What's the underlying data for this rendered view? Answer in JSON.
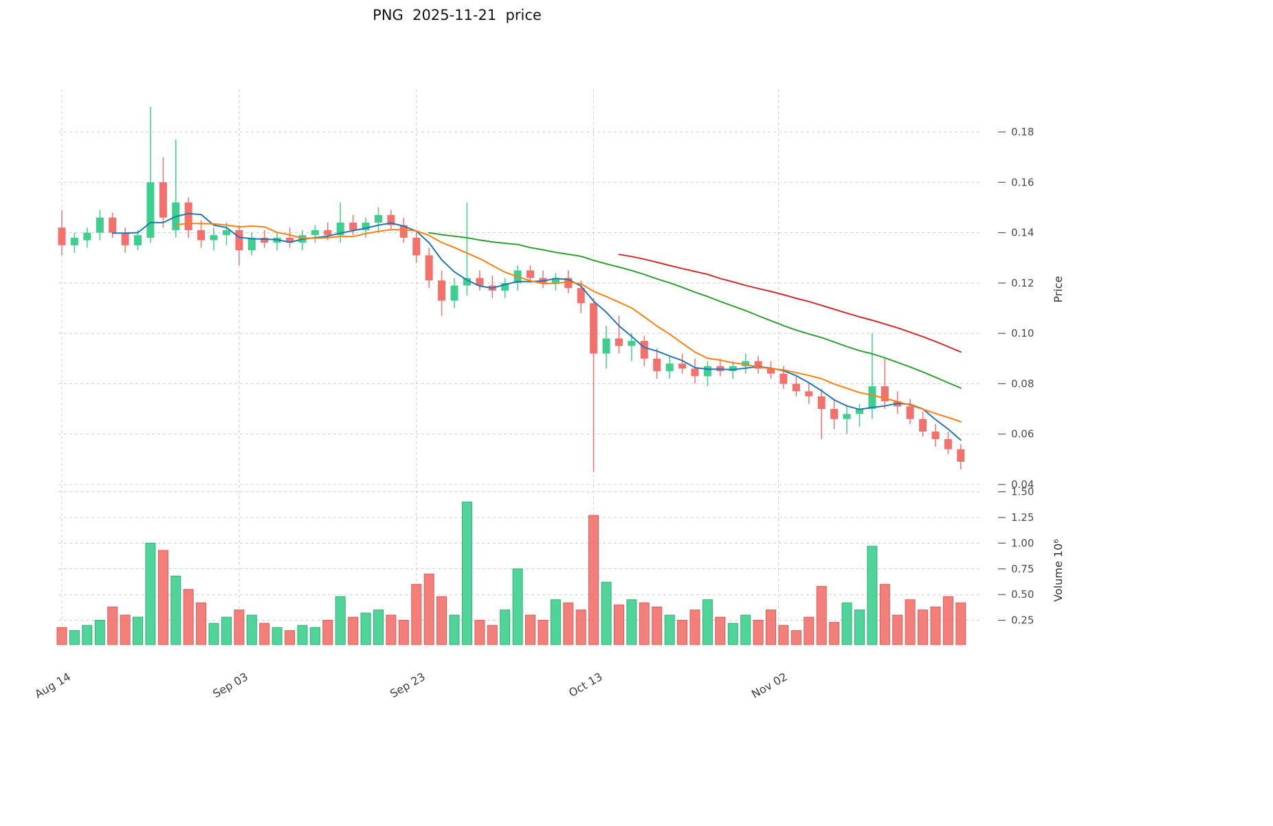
{
  "title": "PNG  2025-11-21  price",
  "chart_data": {
    "type": "candlestick",
    "symbol": "PNG",
    "as_of_date": "2025-11-21",
    "volume_unit": "millions",
    "price_axis": {
      "label": "Price",
      "ticks": [
        0.04,
        0.06,
        0.08,
        0.1,
        0.12,
        0.14,
        0.16,
        0.18
      ],
      "min": 0.038,
      "max": 0.197
    },
    "volume_axis": {
      "label": "Volume  10⁶",
      "ticks": [
        0.25,
        0.5,
        0.75,
        1.0,
        1.25,
        1.5
      ],
      "min": 0,
      "max": 1.55
    },
    "x_ticks": [
      {
        "index": 0,
        "label": "Aug 14"
      },
      {
        "index": 14,
        "label": "Sep 03"
      },
      {
        "index": 28,
        "label": "Sep 23"
      },
      {
        "index": 42,
        "label": "Oct 13"
      },
      {
        "index": 56.6,
        "label": "Nov 02"
      }
    ],
    "dates": [
      "2025-08-14",
      "2025-08-15",
      "2025-08-18",
      "2025-08-19",
      "2025-08-20",
      "2025-08-21",
      "2025-08-22",
      "2025-08-25",
      "2025-08-26",
      "2025-08-27",
      "2025-08-28",
      "2025-08-29",
      "2025-09-01",
      "2025-09-02",
      "2025-09-03",
      "2025-09-04",
      "2025-09-05",
      "2025-09-08",
      "2025-09-09",
      "2025-09-10",
      "2025-09-11",
      "2025-09-12",
      "2025-09-15",
      "2025-09-16",
      "2025-09-17",
      "2025-09-18",
      "2025-09-19",
      "2025-09-22",
      "2025-09-23",
      "2025-09-24",
      "2025-09-25",
      "2025-09-26",
      "2025-09-29",
      "2025-09-30",
      "2025-10-01",
      "2025-10-02",
      "2025-10-03",
      "2025-10-06",
      "2025-10-07",
      "2025-10-08",
      "2025-10-09",
      "2025-10-10",
      "2025-10-13",
      "2025-10-14",
      "2025-10-15",
      "2025-10-16",
      "2025-10-17",
      "2025-10-20",
      "2025-10-21",
      "2025-10-22",
      "2025-10-23",
      "2025-10-24",
      "2025-10-27",
      "2025-10-28",
      "2025-10-29",
      "2025-10-30",
      "2025-10-31",
      "2025-11-03",
      "2025-11-04",
      "2025-11-05",
      "2025-11-06",
      "2025-11-07",
      "2025-11-10",
      "2025-11-11",
      "2025-11-12",
      "2025-11-13",
      "2025-11-14",
      "2025-11-17",
      "2025-11-18",
      "2025-11-19",
      "2025-11-20",
      "2025-11-21"
    ],
    "ohlc": [
      [
        0.142,
        0.149,
        0.131,
        0.135
      ],
      [
        0.135,
        0.14,
        0.132,
        0.138
      ],
      [
        0.137,
        0.142,
        0.134,
        0.14
      ],
      [
        0.14,
        0.149,
        0.137,
        0.146
      ],
      [
        0.146,
        0.148,
        0.138,
        0.14
      ],
      [
        0.14,
        0.142,
        0.132,
        0.135
      ],
      [
        0.135,
        0.141,
        0.133,
        0.139
      ],
      [
        0.138,
        0.19,
        0.136,
        0.16
      ],
      [
        0.16,
        0.17,
        0.142,
        0.146
      ],
      [
        0.141,
        0.177,
        0.138,
        0.152
      ],
      [
        0.152,
        0.154,
        0.138,
        0.141
      ],
      [
        0.141,
        0.145,
        0.134,
        0.137
      ],
      [
        0.137,
        0.142,
        0.133,
        0.139
      ],
      [
        0.139,
        0.144,
        0.135,
        0.141
      ],
      [
        0.141,
        0.143,
        0.127,
        0.133
      ],
      [
        0.133,
        0.14,
        0.131,
        0.138
      ],
      [
        0.138,
        0.141,
        0.134,
        0.136
      ],
      [
        0.136,
        0.14,
        0.133,
        0.138
      ],
      [
        0.138,
        0.142,
        0.134,
        0.136
      ],
      [
        0.136,
        0.141,
        0.133,
        0.139
      ],
      [
        0.139,
        0.143,
        0.136,
        0.141
      ],
      [
        0.141,
        0.144,
        0.137,
        0.139
      ],
      [
        0.139,
        0.152,
        0.136,
        0.144
      ],
      [
        0.144,
        0.147,
        0.139,
        0.141
      ],
      [
        0.141,
        0.146,
        0.138,
        0.144
      ],
      [
        0.144,
        0.15,
        0.14,
        0.147
      ],
      [
        0.147,
        0.149,
        0.141,
        0.143
      ],
      [
        0.143,
        0.146,
        0.136,
        0.138
      ],
      [
        0.138,
        0.14,
        0.128,
        0.131
      ],
      [
        0.131,
        0.134,
        0.118,
        0.121
      ],
      [
        0.121,
        0.125,
        0.107,
        0.113
      ],
      [
        0.113,
        0.122,
        0.11,
        0.119
      ],
      [
        0.119,
        0.152,
        0.115,
        0.122
      ],
      [
        0.122,
        0.125,
        0.117,
        0.119
      ],
      [
        0.119,
        0.123,
        0.114,
        0.117
      ],
      [
        0.117,
        0.122,
        0.114,
        0.12
      ],
      [
        0.12,
        0.127,
        0.117,
        0.125
      ],
      [
        0.125,
        0.127,
        0.12,
        0.122
      ],
      [
        0.122,
        0.125,
        0.118,
        0.12
      ],
      [
        0.12,
        0.124,
        0.117,
        0.122
      ],
      [
        0.122,
        0.125,
        0.116,
        0.118
      ],
      [
        0.118,
        0.121,
        0.108,
        0.112
      ],
      [
        0.112,
        0.114,
        0.045,
        0.092
      ],
      [
        0.092,
        0.103,
        0.086,
        0.098
      ],
      [
        0.098,
        0.107,
        0.092,
        0.095
      ],
      [
        0.095,
        0.1,
        0.089,
        0.097
      ],
      [
        0.097,
        0.099,
        0.087,
        0.09
      ],
      [
        0.09,
        0.094,
        0.082,
        0.085
      ],
      [
        0.085,
        0.091,
        0.082,
        0.088
      ],
      [
        0.088,
        0.092,
        0.084,
        0.086
      ],
      [
        0.086,
        0.09,
        0.08,
        0.083
      ],
      [
        0.083,
        0.089,
        0.079,
        0.087
      ],
      [
        0.087,
        0.09,
        0.083,
        0.085
      ],
      [
        0.085,
        0.089,
        0.082,
        0.087
      ],
      [
        0.087,
        0.092,
        0.084,
        0.089
      ],
      [
        0.089,
        0.091,
        0.084,
        0.086
      ],
      [
        0.086,
        0.089,
        0.082,
        0.084
      ],
      [
        0.084,
        0.087,
        0.078,
        0.08
      ],
      [
        0.08,
        0.083,
        0.075,
        0.077
      ],
      [
        0.077,
        0.08,
        0.072,
        0.075
      ],
      [
        0.075,
        0.078,
        0.058,
        0.07
      ],
      [
        0.07,
        0.074,
        0.062,
        0.066
      ],
      [
        0.066,
        0.071,
        0.06,
        0.068
      ],
      [
        0.068,
        0.072,
        0.063,
        0.07
      ],
      [
        0.07,
        0.1,
        0.066,
        0.079
      ],
      [
        0.079,
        0.09,
        0.07,
        0.073
      ],
      [
        0.073,
        0.077,
        0.068,
        0.071
      ],
      [
        0.071,
        0.074,
        0.064,
        0.066
      ],
      [
        0.066,
        0.069,
        0.059,
        0.061
      ],
      [
        0.061,
        0.064,
        0.055,
        0.058
      ],
      [
        0.058,
        0.061,
        0.052,
        0.054
      ],
      [
        0.054,
        0.056,
        0.046,
        0.049
      ]
    ],
    "volume": [
      0.18,
      0.15,
      0.2,
      0.25,
      0.38,
      0.3,
      0.28,
      1.0,
      0.93,
      0.68,
      0.55,
      0.42,
      0.22,
      0.28,
      0.35,
      0.3,
      0.22,
      0.18,
      0.15,
      0.2,
      0.18,
      0.25,
      0.48,
      0.28,
      0.32,
      0.35,
      0.3,
      0.25,
      0.6,
      0.7,
      0.48,
      0.3,
      1.4,
      0.25,
      0.2,
      0.35,
      0.75,
      0.3,
      0.25,
      0.45,
      0.42,
      0.35,
      1.27,
      0.62,
      0.4,
      0.45,
      0.42,
      0.38,
      0.3,
      0.25,
      0.35,
      0.45,
      0.28,
      0.22,
      0.3,
      0.25,
      0.35,
      0.2,
      0.15,
      0.28,
      0.58,
      0.23,
      0.42,
      0.35,
      0.97,
      0.6,
      0.3,
      0.45,
      0.35,
      0.38,
      0.48,
      0.42
    ],
    "moving_averages": [
      {
        "name": "ma-fast",
        "window": 5,
        "color": "#1f77b4"
      },
      {
        "name": "ma-medium",
        "window": 10,
        "color": "#ff7f0e"
      },
      {
        "name": "ma-slow",
        "window": 30,
        "color": "#2ca02c"
      },
      {
        "name": "ma-long",
        "window": 45,
        "color": "#d62728"
      }
    ],
    "colors": {
      "up": "#3ecf8e",
      "down": "#f2716c",
      "up_edge": "#2bb273",
      "down_edge": "#df5a56",
      "grid": "#cccccc",
      "background": "#ffffff"
    }
  }
}
